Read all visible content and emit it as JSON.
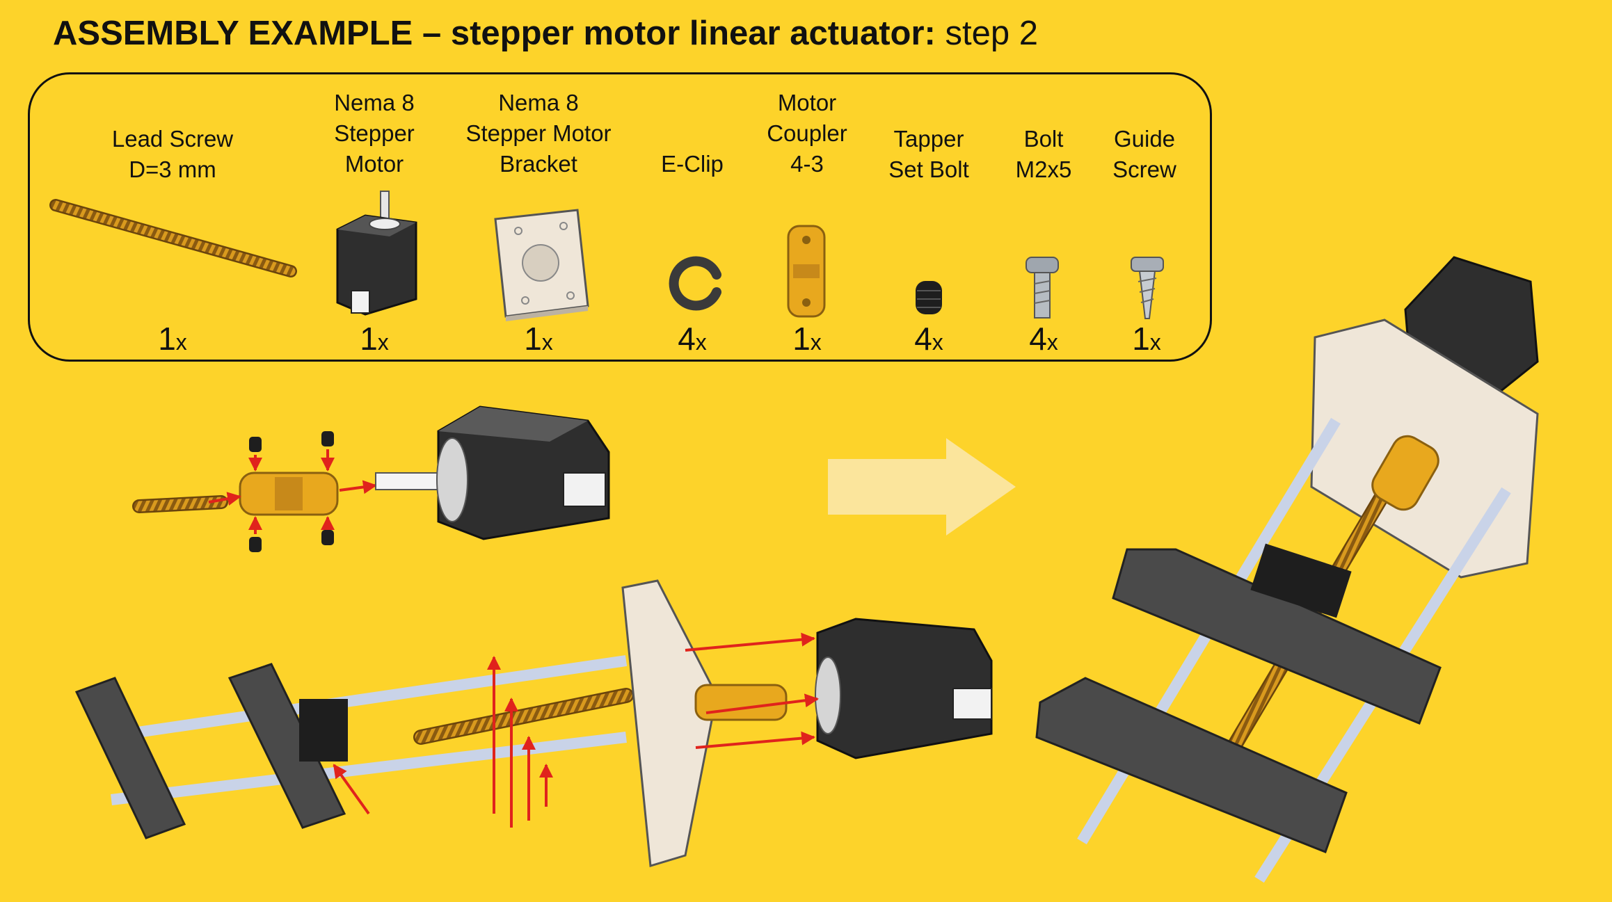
{
  "title": {
    "bold": "ASSEMBLY EXAMPLE – stepper motor linear actuator",
    "colon": ":",
    "rest": " step 2"
  },
  "parts": [
    {
      "label_lines": [
        "Lead Screw",
        "D=3 mm"
      ],
      "qty": "1",
      "unit": "x",
      "icon": "lead-screw-icon"
    },
    {
      "label_lines": [
        "Nema 8",
        "Stepper",
        "Motor"
      ],
      "qty": "1",
      "unit": "x",
      "icon": "stepper-motor-icon"
    },
    {
      "label_lines": [
        "Nema 8",
        "Stepper Motor",
        "Bracket"
      ],
      "qty": "1",
      "unit": "x",
      "icon": "motor-bracket-icon"
    },
    {
      "label_lines": [
        "E-Clip"
      ],
      "qty": "4",
      "unit": "x",
      "icon": "e-clip-icon"
    },
    {
      "label_lines": [
        "Motor",
        "Coupler",
        "4-3"
      ],
      "qty": "1",
      "unit": "x",
      "icon": "motor-coupler-icon"
    },
    {
      "label_lines": [
        "Tapper",
        "Set Bolt"
      ],
      "qty": "4",
      "unit": "x",
      "icon": "set-bolt-icon"
    },
    {
      "label_lines": [
        "Bolt",
        "M2x5"
      ],
      "qty": "4",
      "unit": "x",
      "icon": "bolt-icon"
    },
    {
      "label_lines": [
        "Guide",
        "Screw"
      ],
      "qty": "1",
      "unit": "x",
      "icon": "guide-screw-icon"
    }
  ],
  "colors": {
    "background": "#FDD32A",
    "arrow": "#E0231C",
    "motor_body": "#333333",
    "brass": "#E8A81E",
    "bracket": "#EFE6D8",
    "carriage": "#4A4A4A",
    "rod": "#C9D3E8"
  }
}
